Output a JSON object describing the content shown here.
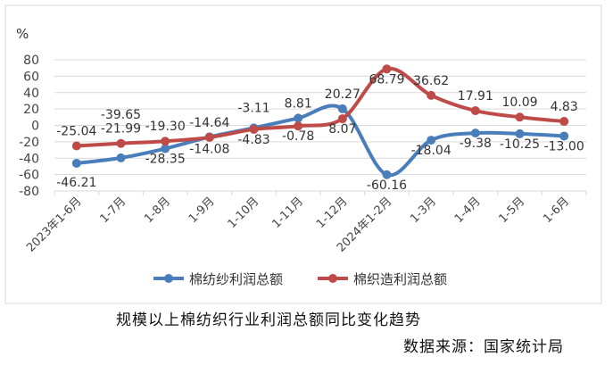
{
  "chart_data": {
    "type": "line",
    "title": "规模以上棉纺织行业利润总额同比变化趋势",
    "source": "数据来源：国家统计局",
    "ylabel": "%",
    "ylim": [
      -80,
      80
    ],
    "yticks": [
      80,
      60,
      40,
      20,
      0,
      -20,
      -40,
      -60,
      -80
    ],
    "grid": true,
    "legend_position": "bottom",
    "categories": [
      "2023年1-6月",
      "1-7月",
      "1-8月",
      "1-9月",
      "1-10月",
      "1-11月",
      "1-12月",
      "2024年1-2月",
      "1-3月",
      "1-4月",
      "1-5月",
      "1-6月"
    ],
    "series": [
      {
        "name": "棉纺纱利润总额",
        "color": "#4a7ebb",
        "values": [
          -46.21,
          -39.65,
          -28.35,
          -14.08,
          -3.11,
          8.81,
          20.27,
          -60.16,
          -18.04,
          -9.38,
          -10.25,
          -13.0
        ],
        "labels": [
          "-46.21",
          "-39.65",
          "-28.35",
          "-14.08",
          "-3.11",
          "8.81",
          "20.27",
          "-60.16",
          "-18.04",
          "-9.38",
          "-10.25",
          "-13.00"
        ]
      },
      {
        "name": "棉织造利润总额",
        "color": "#be4b48",
        "values": [
          -25.04,
          -21.99,
          -19.3,
          -14.64,
          -4.83,
          -0.78,
          8.07,
          68.79,
          36.62,
          17.91,
          10.09,
          4.83
        ],
        "labels": [
          "-25.04",
          "-21.99",
          "-19.30",
          "-14.64",
          "-4.83",
          "-0.78",
          "8.07",
          "68.79",
          "36.62",
          "17.91",
          "10.09",
          "4.83"
        ]
      }
    ]
  }
}
